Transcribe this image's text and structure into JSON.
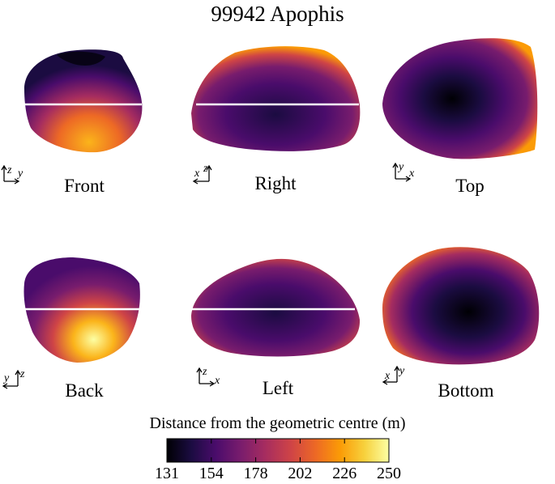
{
  "title": "99942 Apophis",
  "views": [
    {
      "label": "Front",
      "axes": {
        "h": "y",
        "v": "z",
        "h_dir": "right"
      }
    },
    {
      "label": "Right",
      "axes": {
        "h": "x",
        "v": "z",
        "h_dir": "left"
      }
    },
    {
      "label": "Top",
      "axes": {
        "h": "x",
        "v": "y",
        "h_dir": "right"
      }
    },
    {
      "label": "Back",
      "axes": {
        "h": "y",
        "v": "z",
        "h_dir": "left"
      }
    },
    {
      "label": "Left",
      "axes": {
        "h": "x",
        "v": "z",
        "h_dir": "right"
      }
    },
    {
      "label": "Bottom",
      "axes": {
        "h": "x",
        "v": "y",
        "h_dir": "left"
      }
    }
  ],
  "colorbar": {
    "label": "Distance from the geometric centre (m)",
    "ticks": [
      "131",
      "154",
      "178",
      "202",
      "226",
      "250"
    ],
    "min": 131,
    "max": 250,
    "colormap": "inferno"
  },
  "colors": {
    "equator_line": "#ffffff",
    "inferno_stops": [
      "#000004",
      "#1b0c41",
      "#4a0c6b",
      "#781c6d",
      "#a52c60",
      "#cf4446",
      "#ed6925",
      "#fb9b06",
      "#f7d13d",
      "#fcffa4"
    ]
  }
}
